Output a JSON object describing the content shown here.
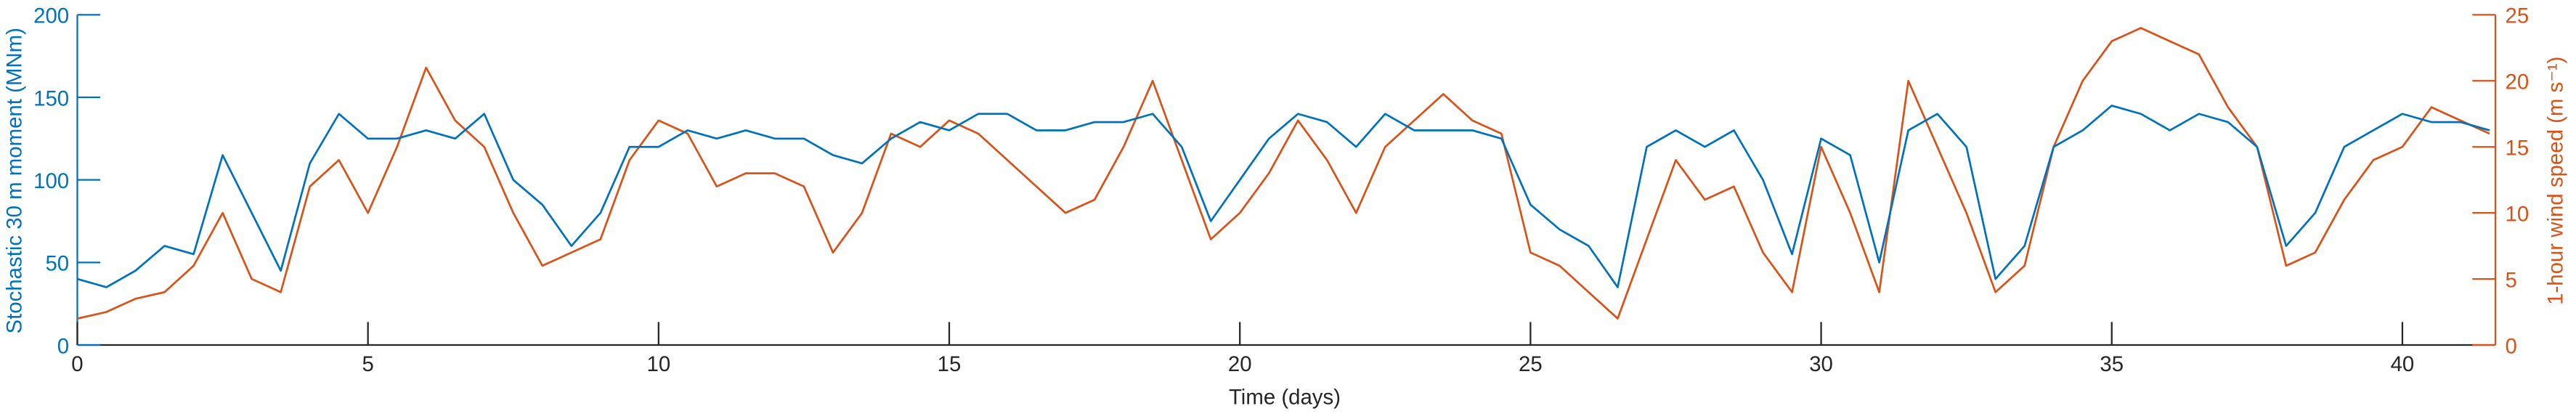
{
  "chart_data": {
    "type": "line",
    "x_label": "Time (days)",
    "y_label": "Stochastic 30 m moment (MNm)",
    "y2_label": "1-hour wind speed (m s⁻¹)",
    "x": [
      0,
      0.5,
      1,
      1.5,
      2,
      2.5,
      3,
      3.5,
      4,
      4.5,
      5,
      5.5,
      6,
      6.5,
      7,
      7.5,
      8,
      8.5,
      9,
      9.5,
      10,
      10.5,
      11,
      11.5,
      12,
      12.5,
      13,
      13.5,
      14,
      14.5,
      15,
      15.5,
      16,
      16.5,
      17,
      17.5,
      18,
      18.5,
      19,
      19.5,
      20,
      20.5,
      21,
      21.5,
      22,
      22.5,
      23,
      23.5,
      24,
      24.5,
      25,
      25.5,
      26,
      26.5,
      27,
      27.5,
      28,
      28.5,
      29,
      29.5,
      30,
      30.5,
      31,
      31.5,
      32,
      32.5,
      33,
      33.5,
      34,
      34.5,
      35,
      35.5,
      36,
      36.5,
      37,
      37.5,
      38,
      38.5,
      39,
      39.5,
      40,
      40.5,
      41,
      41.5
    ],
    "series": [
      {
        "color": "#0072BD",
        "values": [
          40,
          35,
          45,
          60,
          55,
          115,
          80,
          45,
          110,
          140,
          125,
          125,
          130,
          125,
          140,
          100,
          85,
          60,
          80,
          120,
          120,
          130,
          125,
          130,
          125,
          125,
          115,
          110,
          125,
          135,
          130,
          140,
          140,
          130,
          130,
          135,
          135,
          140,
          120,
          75,
          100,
          125,
          140,
          135,
          120,
          140,
          130,
          130,
          130,
          125,
          85,
          70,
          60,
          35,
          120,
          130,
          120,
          130,
          100,
          55,
          125,
          115,
          50,
          130,
          140,
          120,
          40,
          60,
          120,
          130,
          145,
          140,
          130,
          140,
          135,
          120,
          60,
          80,
          120,
          130,
          140,
          135,
          135,
          130
        ]
      },
      {
        "color": "#D95319",
        "axis": "y2",
        "values": [
          2,
          2.5,
          3.5,
          4,
          6,
          10,
          5,
          4,
          12,
          14,
          10,
          15,
          21,
          17,
          15,
          10,
          6,
          7,
          8,
          14,
          17,
          16,
          12,
          13,
          13,
          12,
          7,
          10,
          16,
          15,
          17,
          16,
          14,
          12,
          10,
          11,
          15,
          20,
          14,
          8,
          10,
          13,
          17,
          14,
          10,
          15,
          17,
          19,
          17,
          16,
          7,
          6,
          4,
          2,
          8,
          14,
          11,
          12,
          7,
          4,
          15,
          10,
          4,
          20,
          15,
          10,
          4,
          6,
          15,
          20,
          23,
          24,
          23,
          22,
          18,
          15,
          6,
          7,
          11,
          14,
          15,
          18,
          17,
          16
        ]
      }
    ],
    "xlim": [
      0,
      41.6
    ],
    "xticks": [
      0,
      5,
      10,
      15,
      20,
      25,
      30,
      35,
      40
    ],
    "ylim": [
      0,
      200
    ],
    "yticks": [
      0,
      50,
      100,
      150,
      200
    ],
    "y2lim": [
      0,
      25
    ],
    "y2ticks": [
      0,
      5,
      10,
      15,
      20,
      25
    ],
    "grid": false
  }
}
